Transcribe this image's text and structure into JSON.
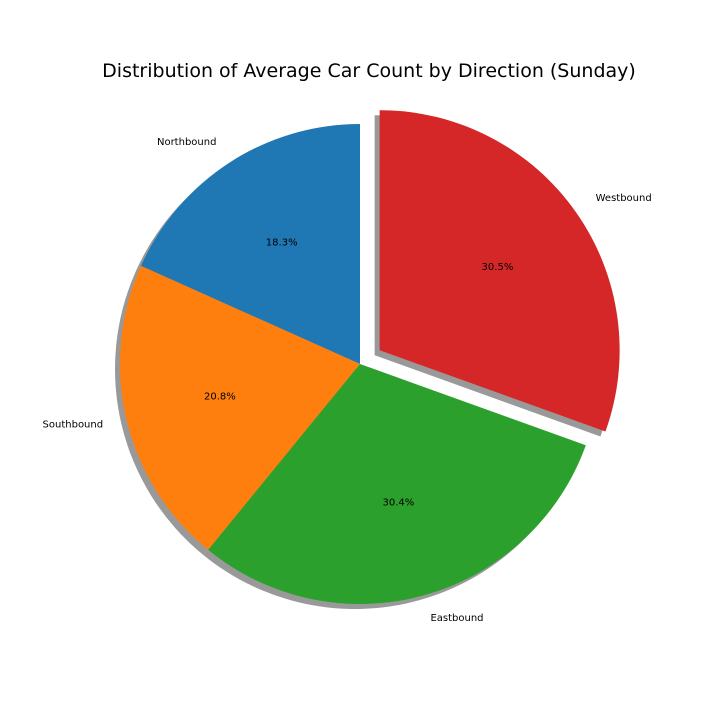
{
  "chart_data": {
    "type": "pie",
    "title": "Distribution of Average Car Count by Direction (Sunday)",
    "labels": [
      "Northbound",
      "Southbound",
      "Eastbound",
      "Westbound"
    ],
    "values": [
      18.3,
      20.8,
      30.4,
      30.5
    ],
    "value_labels": [
      "18.3%",
      "20.8%",
      "30.4%",
      "30.5%"
    ],
    "colors": [
      "#1f77b4",
      "#ff7f0e",
      "#2ca02c",
      "#d62728"
    ],
    "exploded": [
      false,
      false,
      false,
      true
    ],
    "start_angle": "top, counter-clockwise",
    "shadow": true,
    "legend": "none"
  }
}
